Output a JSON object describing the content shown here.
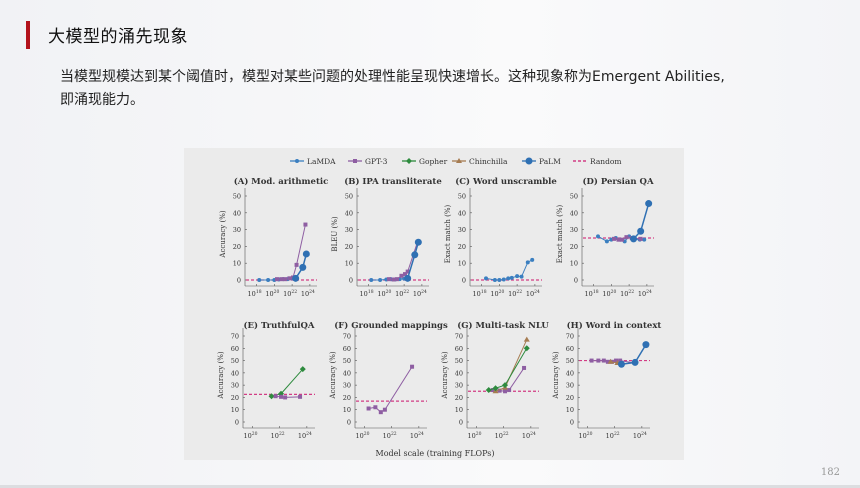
{
  "slide": {
    "title": "大模型的涌先现象",
    "body_line1": "当模型规模达到某个阈值时，模型对某些问题的处理性能呈现快速增长。这种现象称为Emergent Abilities,",
    "body_line2": "即涌现能力。",
    "page_number": "182",
    "accent_color": "#b3121b"
  },
  "chart_data": {
    "type": "line",
    "xlabel": "Model scale (training FLOPs)",
    "x_scale": "log",
    "legend": {
      "placement": "top",
      "entries": [
        {
          "name": "LaMDA",
          "color": "#3b7fc0",
          "marker": "circle"
        },
        {
          "name": "GPT-3",
          "color": "#8e5ea2",
          "marker": "square"
        },
        {
          "name": "Gopher",
          "color": "#2e8b3e",
          "marker": "diamond"
        },
        {
          "name": "Chinchilla",
          "color": "#a67c52",
          "marker": "triangle"
        },
        {
          "name": "PaLM",
          "color": "#2f70b3",
          "marker": "large-circle"
        },
        {
          "name": "Random",
          "color": "#d23c84",
          "marker": "dashed"
        }
      ]
    },
    "panels": [
      {
        "title": "(A) Mod. arithmetic",
        "ylabel": "Accuracy (%)",
        "ylim": [
          0,
          50
        ],
        "yticks": [
          0,
          10,
          20,
          30,
          40,
          50
        ],
        "xticks": [
          18,
          20,
          22,
          24
        ],
        "xlim_log10": [
          16.7,
          24.8
        ],
        "random": 0,
        "series": {
          "LaMDA": [
            [
              18.3,
              0
            ],
            [
              19.3,
              0
            ],
            [
              20,
              0
            ],
            [
              20.5,
              0.3
            ],
            [
              21,
              0.5
            ],
            [
              21.5,
              0.5
            ],
            [
              22,
              1
            ],
            [
              22.4,
              1
            ]
          ],
          "GPT-3": [
            [
              20.3,
              0.5
            ],
            [
              20.8,
              0.5
            ],
            [
              21.2,
              0.5
            ],
            [
              21.7,
              1
            ],
            [
              22.1,
              1.5
            ],
            [
              22.5,
              9
            ],
            [
              23.5,
              33
            ]
          ],
          "PaLM": [
            [
              22.4,
              1
            ],
            [
              23.2,
              7.5
            ],
            [
              23.6,
              15.5
            ]
          ]
        }
      },
      {
        "title": "(B) IPA transliterate",
        "ylabel": "BLEU (%)",
        "ylim": [
          0,
          50
        ],
        "yticks": [
          0,
          10,
          20,
          30,
          40,
          50
        ],
        "xticks": [
          18,
          20,
          22,
          24
        ],
        "xlim_log10": [
          16.7,
          24.8
        ],
        "random": 0,
        "series": {
          "LaMDA": [
            [
              18.3,
              0
            ],
            [
              19.3,
              0
            ],
            [
              20,
              0.3
            ],
            [
              20.5,
              0.5
            ],
            [
              21,
              0.3
            ],
            [
              21.5,
              0.5
            ],
            [
              22,
              0.8
            ],
            [
              22.4,
              1
            ]
          ],
          "GPT-3": [
            [
              20.3,
              0.5
            ],
            [
              20.8,
              0.3
            ],
            [
              21.2,
              0.5
            ],
            [
              21.7,
              2.5
            ],
            [
              22.1,
              3.5
            ],
            [
              22.4,
              5
            ],
            [
              23.5,
              22.5
            ]
          ],
          "PaLM": [
            [
              22.4,
              1
            ],
            [
              23.2,
              15
            ],
            [
              23.6,
              22.5
            ]
          ]
        }
      },
      {
        "title": "(C) Word unscramble",
        "ylabel": "Exact match (%)",
        "ylim": [
          0,
          50
        ],
        "yticks": [
          0,
          10,
          20,
          30,
          40,
          50
        ],
        "xticks": [
          18,
          20,
          22,
          24
        ],
        "xlim_log10": [
          16.7,
          24.8
        ],
        "random": 0,
        "series": {
          "LaMDA": [
            [
              18.5,
              1
            ],
            [
              19.5,
              0
            ],
            [
              20,
              0
            ],
            [
              20.5,
              0.3
            ],
            [
              21,
              1
            ],
            [
              21.4,
              1.3
            ],
            [
              22,
              2.3
            ],
            [
              22.5,
              2
            ],
            [
              23.2,
              10.5
            ],
            [
              23.7,
              12
            ]
          ]
        }
      },
      {
        "title": "(D) Persian QA",
        "ylabel": "Exact match (%)",
        "ylim": [
          0,
          50
        ],
        "yticks": [
          0,
          10,
          20,
          30,
          40,
          50
        ],
        "xticks": [
          18,
          20,
          22,
          24
        ],
        "xlim_log10": [
          16.7,
          24.8
        ],
        "random": 25,
        "series": {
          "LaMDA": [
            [
              18.5,
              26
            ],
            [
              19.5,
              23
            ],
            [
              20,
              24
            ],
            [
              20.5,
              25
            ],
            [
              21,
              24
            ],
            [
              21.5,
              23
            ],
            [
              22,
              26
            ],
            [
              22.5,
              24
            ],
            [
              23.2,
              24
            ],
            [
              23.7,
              24
            ]
          ],
          "GPT-3": [
            [
              20.3,
              24.5
            ],
            [
              20.8,
              24
            ],
            [
              21.2,
              24
            ],
            [
              21.7,
              25.5
            ],
            [
              22.3,
              25
            ],
            [
              23.3,
              24.5
            ]
          ],
          "PaLM": [
            [
              22.5,
              24.5
            ],
            [
              23.3,
              29
            ],
            [
              24.2,
              45.5
            ]
          ]
        }
      },
      {
        "title": "(E) TruthfulQA",
        "ylabel": "Accuracy (%)",
        "ylim": [
          0,
          70
        ],
        "yticks": [
          0,
          10,
          20,
          30,
          40,
          50,
          60,
          70
        ],
        "xticks": [
          20,
          22,
          24
        ],
        "xlim_log10": [
          19.3,
          24.6
        ],
        "random": 22.5,
        "series": {
          "Gopher": [
            [
              21.4,
              21
            ],
            [
              22.1,
              23
            ],
            [
              23.7,
              43
            ]
          ],
          "GPT-3": [
            [
              21.7,
              21
            ],
            [
              22.1,
              20.5
            ],
            [
              22.4,
              20
            ],
            [
              23.5,
              20.5
            ]
          ]
        }
      },
      {
        "title": "(F) Grounded mappings",
        "ylabel": "Accuracy (%)",
        "ylim": [
          0,
          70
        ],
        "yticks": [
          0,
          10,
          20,
          30,
          40,
          50,
          60,
          70
        ],
        "xticks": [
          20,
          22,
          24
        ],
        "xlim_log10": [
          19.3,
          24.6
        ],
        "random": 17,
        "series": {
          "GPT-3": [
            [
              20.3,
              11
            ],
            [
              20.8,
              12
            ],
            [
              21.2,
              8
            ],
            [
              21.5,
              10
            ],
            [
              23.5,
              45
            ]
          ]
        }
      },
      {
        "title": "(G) Multi-task NLU",
        "ylabel": "Accuracy (%)",
        "ylim": [
          0,
          70
        ],
        "yticks": [
          0,
          10,
          20,
          30,
          40,
          50,
          60,
          70
        ],
        "xticks": [
          20,
          22,
          24
        ],
        "xlim_log10": [
          19.3,
          24.6
        ],
        "random": 25,
        "series": {
          "GPT-3": [
            [
              21.2,
              26
            ],
            [
              21.7,
              25.5
            ],
            [
              22.1,
              25
            ],
            [
              22.4,
              26
            ],
            [
              23.5,
              44
            ]
          ],
          "Chinchilla": [
            [
              21.4,
              25
            ],
            [
              22.1,
              28
            ],
            [
              23.7,
              67
            ]
          ],
          "Gopher": [
            [
              20.9,
              26
            ],
            [
              21.4,
              27.5
            ],
            [
              22.1,
              30
            ],
            [
              23.7,
              60
            ]
          ]
        }
      },
      {
        "title": "(H) Word in context",
        "ylabel": "Accuracy (%)",
        "ylim": [
          0,
          70
        ],
        "yticks": [
          0,
          10,
          20,
          30,
          40,
          50,
          60,
          70
        ],
        "xticks": [
          20,
          22,
          24
        ],
        "xlim_log10": [
          19.3,
          24.6
        ],
        "random": 50,
        "series": {
          "GPT-3": [
            [
              20.3,
              50
            ],
            [
              20.8,
              50
            ],
            [
              21.2,
              50
            ],
            [
              21.5,
              49
            ],
            [
              21.8,
              49
            ],
            [
              22.1,
              50
            ],
            [
              22.4,
              50
            ],
            [
              23.5,
              48
            ]
          ],
          "Chinchilla": [
            [
              21.7,
              49
            ],
            [
              22.2,
              48
            ]
          ],
          "PaLM": [
            [
              22.5,
              47
            ],
            [
              23.5,
              48.5
            ],
            [
              24.3,
              63
            ]
          ]
        }
      }
    ]
  }
}
